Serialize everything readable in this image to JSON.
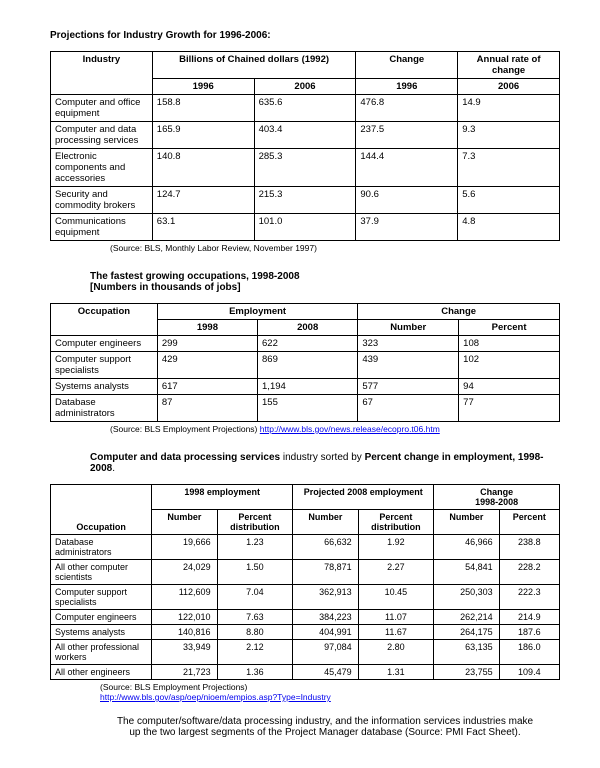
{
  "section1": {
    "title": "Projections for Industry Growth for 1996-2006:",
    "header": {
      "industry": "Industry",
      "billions": "Billions of Chained dollars (1992)",
      "change": "Change",
      "annual": "Annual rate of change",
      "y1996": "1996",
      "y2006": "2006"
    },
    "rows": [
      {
        "name": "Computer and office equipment",
        "v1996": "158.8",
        "v2006": "635.6",
        "chg": "476.8",
        "rate": "14.9"
      },
      {
        "name": "Computer and data processing services",
        "v1996": "165.9",
        "v2006": "403.4",
        "chg": "237.5",
        "rate": "9.3"
      },
      {
        "name": "Electronic components and accessories",
        "v1996": "140.8",
        "v2006": "285.3",
        "chg": "144.4",
        "rate": "7.3"
      },
      {
        "name": "Security and commodity brokers",
        "v1996": "124.7",
        "v2006": "215.3",
        "chg": "90.6",
        "rate": "5.6"
      },
      {
        "name": "Communications equipment",
        "v1996": "63.1",
        "v2006": "101.0",
        "chg": "37.9",
        "rate": "4.8"
      }
    ],
    "source": "(Source: BLS, Monthly Labor Review, November 1997)"
  },
  "section2": {
    "title_line1": "The fastest growing occupations, 1998-2008",
    "title_line2": "[Numbers in thousands of jobs]",
    "header": {
      "occupation": "Occupation",
      "employment": "Employment",
      "change": "Change",
      "y1998": "1998",
      "y2008": "2008",
      "number": "Number",
      "percent": "Percent"
    },
    "rows": [
      {
        "name": "Computer engineers",
        "v1998": "299",
        "v2008": "622",
        "num": "323",
        "pct": "108"
      },
      {
        "name": "Computer support specialists",
        "v1998": "429",
        "v2008": "869",
        "num": "439",
        "pct": "102"
      },
      {
        "name": "Systems analysts",
        "v1998": "617",
        "v2008": "1,194",
        "num": "577",
        "pct": "94"
      },
      {
        "name": "Database administrators",
        "v1998": "87",
        "v2008": "155",
        "num": "67",
        "pct": "77"
      }
    ],
    "source_text": "(Source: BLS Employment Projections) ",
    "source_link": "http://www.bls.gov/news.release/ecopro.t06.htm"
  },
  "section3": {
    "title_a": "Computer and data processing services",
    "title_b": " industry sorted by ",
    "title_c": "Percent change in employment, 1998-2008",
    "title_d": ".",
    "header": {
      "occupation": "Occupation",
      "emp1998": "1998 employment",
      "emp2008": "Projected 2008 employment",
      "change": "Change 1998-2008",
      "number": "Number",
      "pctdist": "Percent distribution",
      "percent": "Percent"
    },
    "rows": [
      {
        "name": "Database administrators",
        "n1": "19,666",
        "p1": "1.23",
        "n2": "66,632",
        "p2": "1.92",
        "cn": "46,966",
        "cp": "238.8"
      },
      {
        "name": "All other computer scientists",
        "n1": "24,029",
        "p1": "1.50",
        "n2": "78,871",
        "p2": "2.27",
        "cn": "54,841",
        "cp": "228.2"
      },
      {
        "name": "Computer support specialists",
        "n1": "112,609",
        "p1": "7.04",
        "n2": "362,913",
        "p2": "10.45",
        "cn": "250,303",
        "cp": "222.3"
      },
      {
        "name": "Computer engineers",
        "n1": "122,010",
        "p1": "7.63",
        "n2": "384,223",
        "p2": "11.07",
        "cn": "262,214",
        "cp": "214.9"
      },
      {
        "name": "Systems analysts",
        "n1": "140,816",
        "p1": "8.80",
        "n2": "404,991",
        "p2": "11.67",
        "cn": "264,175",
        "cp": "187.6"
      },
      {
        "name": "All other professional workers",
        "n1": "33,949",
        "p1": "2.12",
        "n2": "97,084",
        "p2": "2.80",
        "cn": "63,135",
        "cp": "186.0"
      },
      {
        "name": "All other engineers",
        "n1": "21,723",
        "p1": "1.36",
        "n2": "45,479",
        "p2": "1.31",
        "cn": "23,755",
        "cp": "109.4"
      }
    ],
    "source_text": "(Source: BLS Employment Projections)",
    "source_link": "http://www.bls.gov/asp/oep/nioem/empios.asp?Type=Industry"
  },
  "paragraph": "The computer/software/data processing industry, and the information services industries make up the two largest segments of the Project Manager database (Source: PMI Fact Sheet)."
}
